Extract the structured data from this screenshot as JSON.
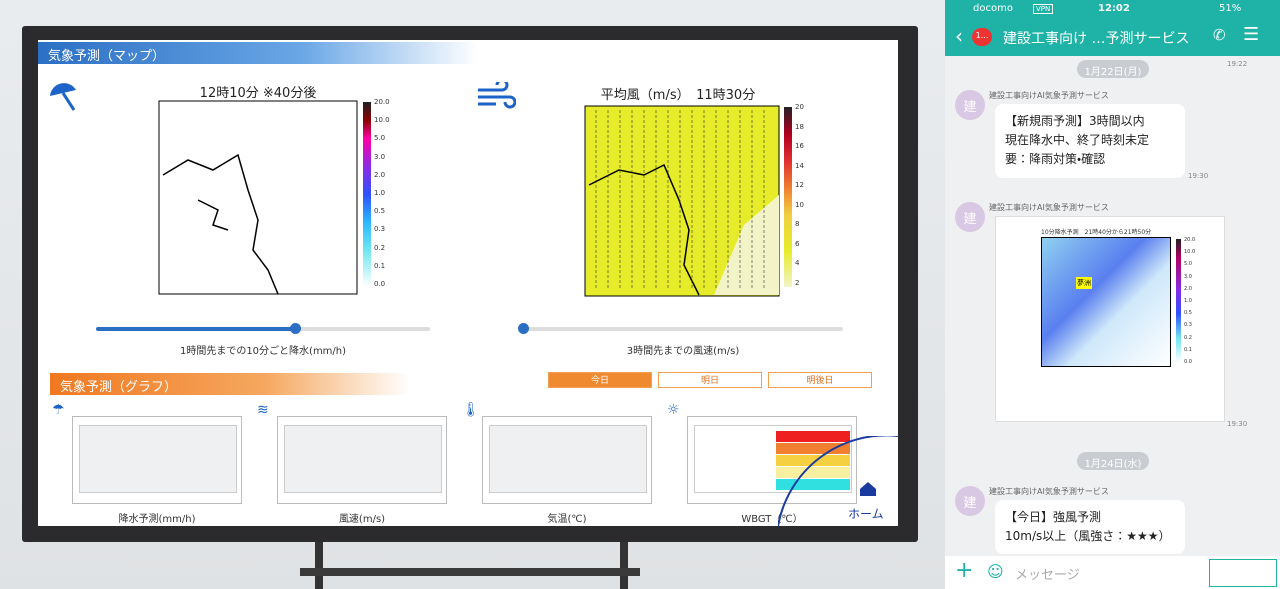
{
  "monitor": {
    "map_section_title": "気象予測（マップ）",
    "rain_map": {
      "title": "12時10分 ※40分後",
      "colorbar": [
        "20.0",
        "10.0",
        "5.0",
        "3.0",
        "2.0",
        "1.0",
        "0.5",
        "0.3",
        "0.2",
        "0.1",
        "0.0"
      ],
      "slider_label": "1時間先までの10分ごと降水(mm/h)"
    },
    "wind_map": {
      "title": "平均風（m/s）　11時30分",
      "colorbar": [
        "20",
        "18",
        "16",
        "14",
        "12",
        "10",
        "8",
        "6",
        "4",
        "2"
      ],
      "slider_label": "3時間先までの風速(m/s)"
    },
    "graph_section_title": "気象予測（グラフ）",
    "tabs": [
      "今日",
      "明日",
      "明後日"
    ],
    "graphs": [
      "降水予測(mm/h)",
      "風速(m/s)",
      "気温(℃)",
      "WBGT（℃）"
    ],
    "home": "ホーム"
  },
  "phone": {
    "status": {
      "carrier": "docomo",
      "vpn": "VPN",
      "time": "12:02",
      "battery": "51%"
    },
    "header": {
      "badge": "1...",
      "title": "建設工事向け …予測サービス"
    },
    "top_time": "19:22",
    "dates": [
      "1月22日(月)",
      "1月24日(水)"
    ],
    "messages": [
      {
        "avatar": "建",
        "sender": "建設工事向けAI気象予測サービス",
        "lines": [
          "【新規雨予測】3時間以内",
          "現在降水中、終了時刻未定",
          "要：降雨対策・確認"
        ],
        "time": "19:30"
      },
      {
        "avatar": "建",
        "sender": "建設工事向けAI気象予測サービス",
        "image_title": "10分降水予測　21時40分から21時50分",
        "image_label": "夢洲",
        "image_colorbar": [
          "20.0",
          "10.0",
          "5.0",
          "3.0",
          "2.0",
          "1.0",
          "0.5",
          "0.3",
          "0.2",
          "0.1",
          "0.0"
        ],
        "time": "19:30"
      },
      {
        "avatar": "建",
        "sender": "建設工事向けAI気象予測サービス",
        "lines": [
          "【今日】強風予測",
          "10m/s以上（風強さ：★★★）"
        ]
      }
    ],
    "input_placeholder": "メッセージ"
  }
}
